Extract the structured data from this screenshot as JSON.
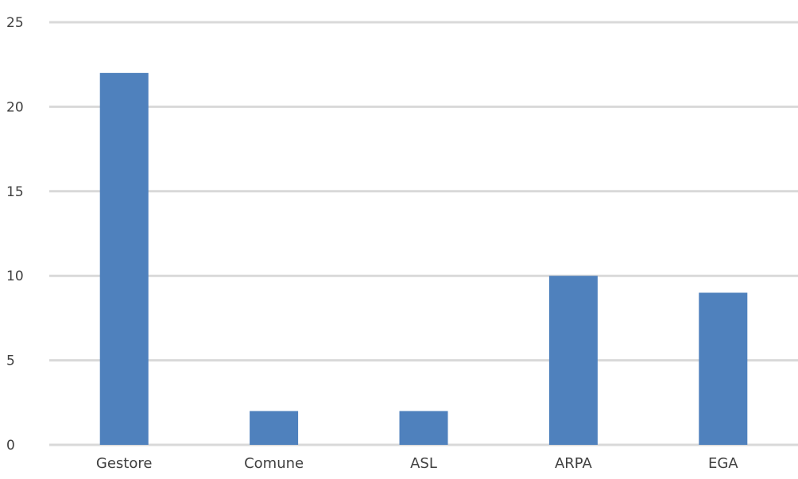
{
  "chart_data": {
    "type": "bar",
    "title": "",
    "xlabel": "",
    "ylabel": "",
    "categories": [
      "Gestore",
      "Comune",
      "ASL",
      "ARPA",
      "EGA"
    ],
    "values": [
      22,
      2,
      2,
      10,
      9
    ],
    "ylim": [
      0,
      25
    ],
    "yticks": [
      "0",
      "5",
      "10",
      "15",
      "20",
      "25"
    ],
    "grid": true,
    "legend": "none",
    "colors": {
      "bar": "#4f81bd",
      "grid": "#d9d9d9",
      "text": "#404040"
    }
  }
}
